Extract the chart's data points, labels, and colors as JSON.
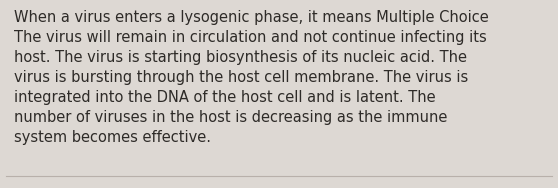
{
  "text": "When a virus enters a lysogenic phase, it means Multiple Choice\nThe virus will remain in circulation and not continue infecting its\nhost. The virus is starting biosynthesis of its nucleic acid. The\nvirus is bursting through the host cell membrane. The virus is\nintegrated into the DNA of the host cell and is latent. The\nnumber of viruses in the host is decreasing as the immune\nsystem becomes effective.",
  "background_color": "#ddd8d3",
  "text_color": "#2e2b28",
  "font_size": 10.5,
  "border_color": "#b8b0aa",
  "fig_width": 5.58,
  "fig_height": 1.88,
  "dpi": 100
}
